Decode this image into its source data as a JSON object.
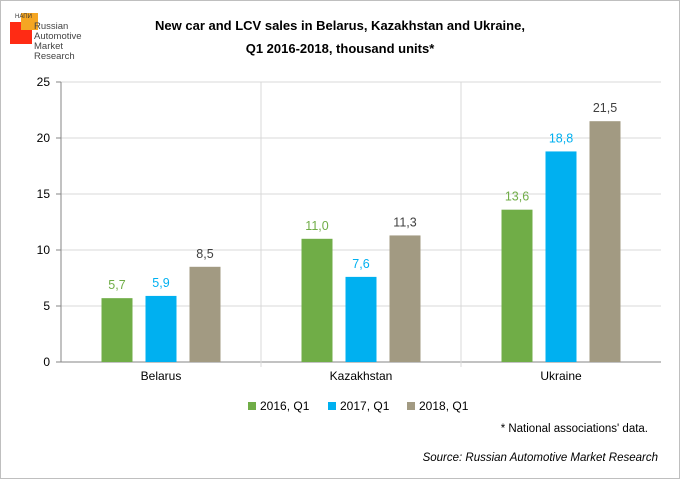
{
  "logo": {
    "abbr": "НАПИ",
    "lines": [
      "Russian",
      "Automotive",
      "Market",
      "Research"
    ]
  },
  "title": {
    "line1": "New car and LCV sales in Belarus, Kazakhstan and Ukraine,",
    "line2": "Q1 2016-2018, thousand units*"
  },
  "note": "* National associations' data.",
  "source": "Source: Russian Automotive Market Research",
  "chart_data": {
    "type": "bar",
    "categories": [
      "Belarus",
      "Kazakhstan",
      "Ukraine"
    ],
    "series": [
      {
        "name": "2016, Q1",
        "color": "#70ad47",
        "values": [
          5.7,
          11.0,
          13.6
        ],
        "labels": [
          "5,7",
          "11,0",
          "13,6"
        ]
      },
      {
        "name": "2017, Q1",
        "color": "#00b0f0",
        "values": [
          5.9,
          7.6,
          18.8
        ],
        "labels": [
          "5,9",
          "7,6",
          "18,8"
        ]
      },
      {
        "name": "2018, Q1",
        "color": "#a29a82",
        "values": [
          8.5,
          11.3,
          21.5
        ],
        "labels": [
          "8,5",
          "11,3",
          "21,5"
        ]
      }
    ],
    "ylim": [
      0,
      25
    ],
    "yticks": [
      0,
      5,
      10,
      15,
      20,
      25
    ],
    "grid": true,
    "legend": "bottom"
  }
}
